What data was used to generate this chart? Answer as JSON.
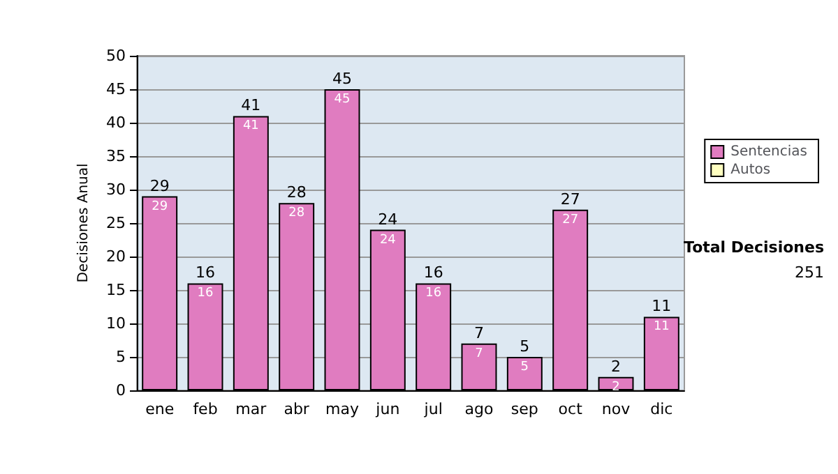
{
  "chart_data": {
    "type": "bar",
    "ylabel": "Decisiones Anual",
    "categories": [
      "ene",
      "feb",
      "mar",
      "abr",
      "may",
      "jun",
      "jul",
      "ago",
      "sep",
      "oct",
      "nov",
      "dic"
    ],
    "series": [
      {
        "name": "Sentencias",
        "color": "#e07cc0",
        "values": [
          29,
          16,
          41,
          28,
          45,
          24,
          16,
          7,
          5,
          27,
          2,
          11
        ]
      },
      {
        "name": "Autos",
        "color": "#ffffc0",
        "values": [
          null,
          null,
          null,
          null,
          null,
          null,
          null,
          null,
          null,
          null,
          null,
          null
        ]
      }
    ],
    "stacked": true,
    "totals": [
      "29",
      "16",
      "41",
      "28",
      "45",
      "24",
      "16",
      "7",
      "5",
      "27",
      "2",
      "11"
    ],
    "ylim": [
      0,
      50
    ],
    "yticks": [
      0,
      5,
      10,
      15,
      20,
      25,
      30,
      35,
      40,
      45,
      50
    ],
    "grid": "y",
    "legend": "right",
    "data_labels": true,
    "annotations": [
      "Total Decisiones",
      "251"
    ]
  }
}
